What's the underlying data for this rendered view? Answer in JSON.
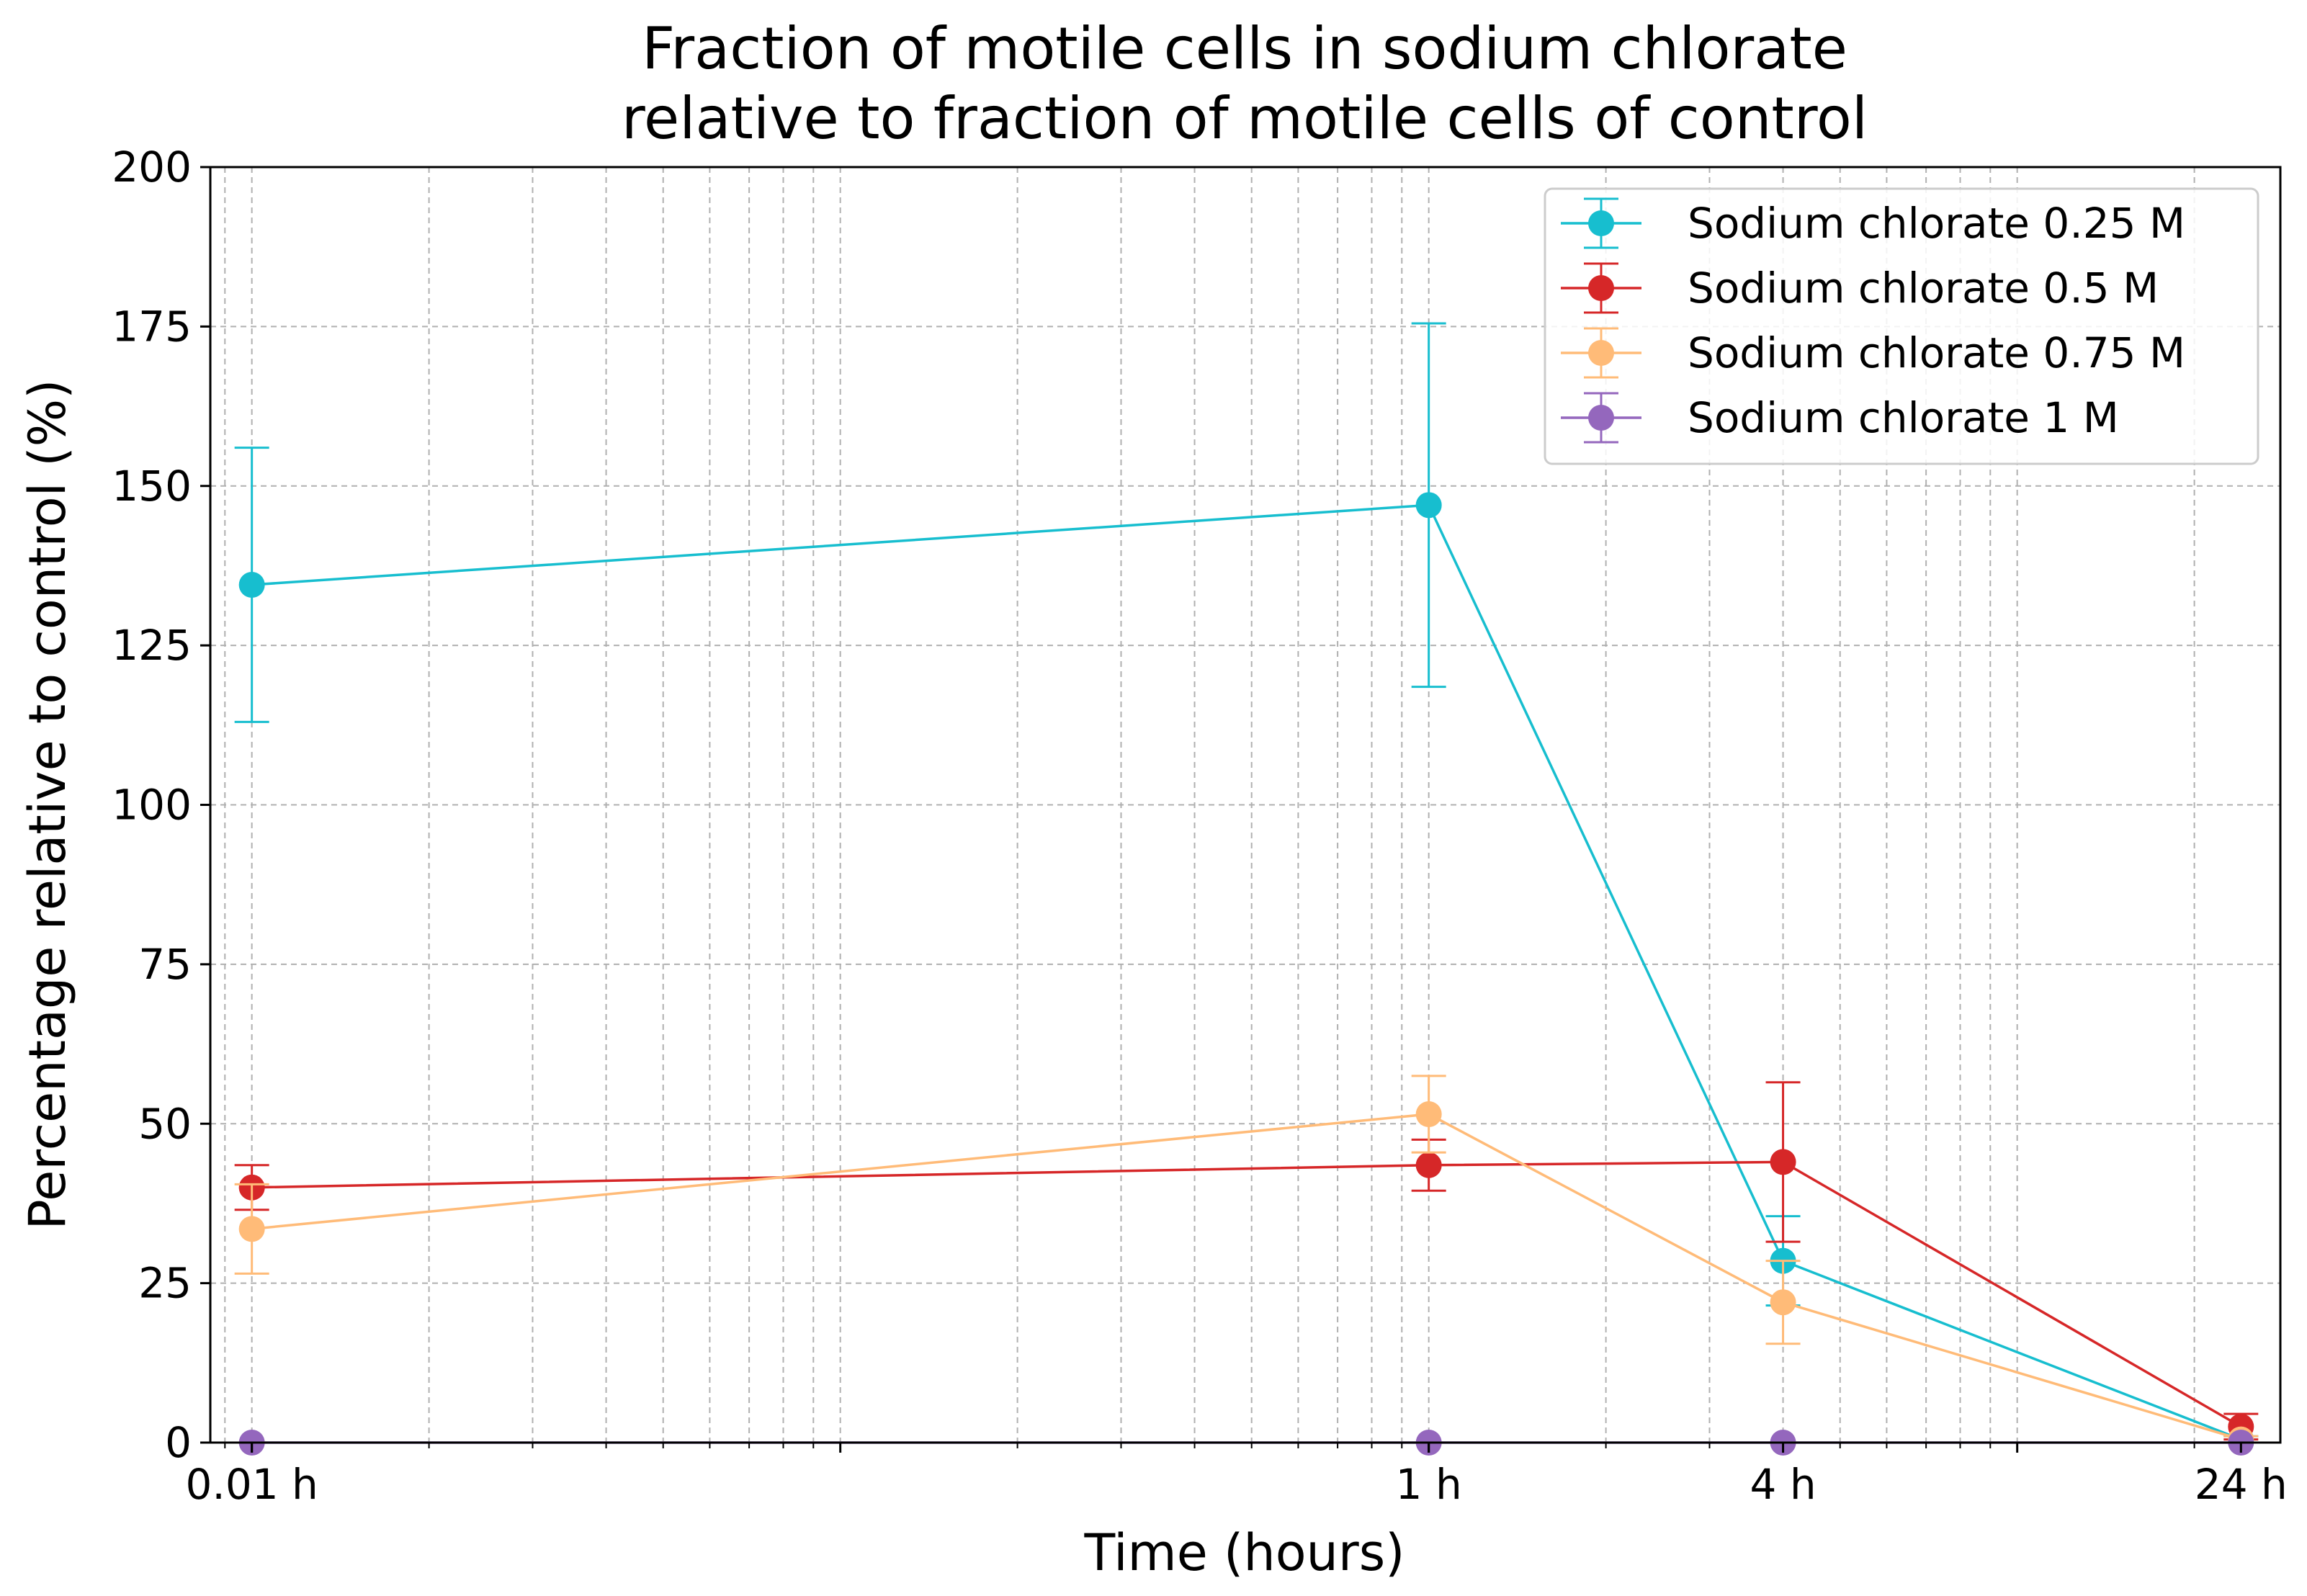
{
  "chart_data": {
    "type": "line",
    "title_lines": [
      "Fraction of motile cells in sodium chlorate",
      "relative to fraction of motile cells of control"
    ],
    "xlabel": "Time (hours)",
    "ylabel": "Percentage relative to control (%)",
    "x_scale": "log",
    "xlim": [
      0.0085,
      28
    ],
    "ylim": [
      0,
      200
    ],
    "x": [
      0.01,
      1,
      4,
      24
    ],
    "x_tick_labels": [
      "0.01 h",
      "1 h",
      "4 h",
      "24 h"
    ],
    "y_ticks": [
      0,
      25,
      50,
      75,
      100,
      125,
      150,
      175,
      200
    ],
    "y_tick_labels": [
      "0",
      "25",
      "50",
      "75",
      "100",
      "125",
      "150",
      "175",
      "200"
    ],
    "grid": true,
    "legend_position": "top-right",
    "series": [
      {
        "name": "Sodium chlorate 0.25 M",
        "color": "#17becf",
        "values": [
          134.5,
          147,
          28.5,
          0.5
        ],
        "errors": [
          21.5,
          28.5,
          7,
          0.5
        ]
      },
      {
        "name": "Sodium chlorate 0.5 M",
        "color": "#d62728",
        "values": [
          40,
          43.5,
          44,
          2.5
        ],
        "errors": [
          3.5,
          4,
          12.5,
          2
        ]
      },
      {
        "name": "Sodium chlorate 0.75 M",
        "color": "#ffbb78",
        "values": [
          33.5,
          51.5,
          22,
          0.5
        ],
        "errors": [
          7,
          6,
          6.5,
          0.5
        ]
      },
      {
        "name": "Sodium chlorate 1 M",
        "color": "#9467bd",
        "values": [
          0,
          0,
          0,
          0
        ],
        "errors": [
          0,
          0,
          0,
          0
        ]
      }
    ]
  }
}
